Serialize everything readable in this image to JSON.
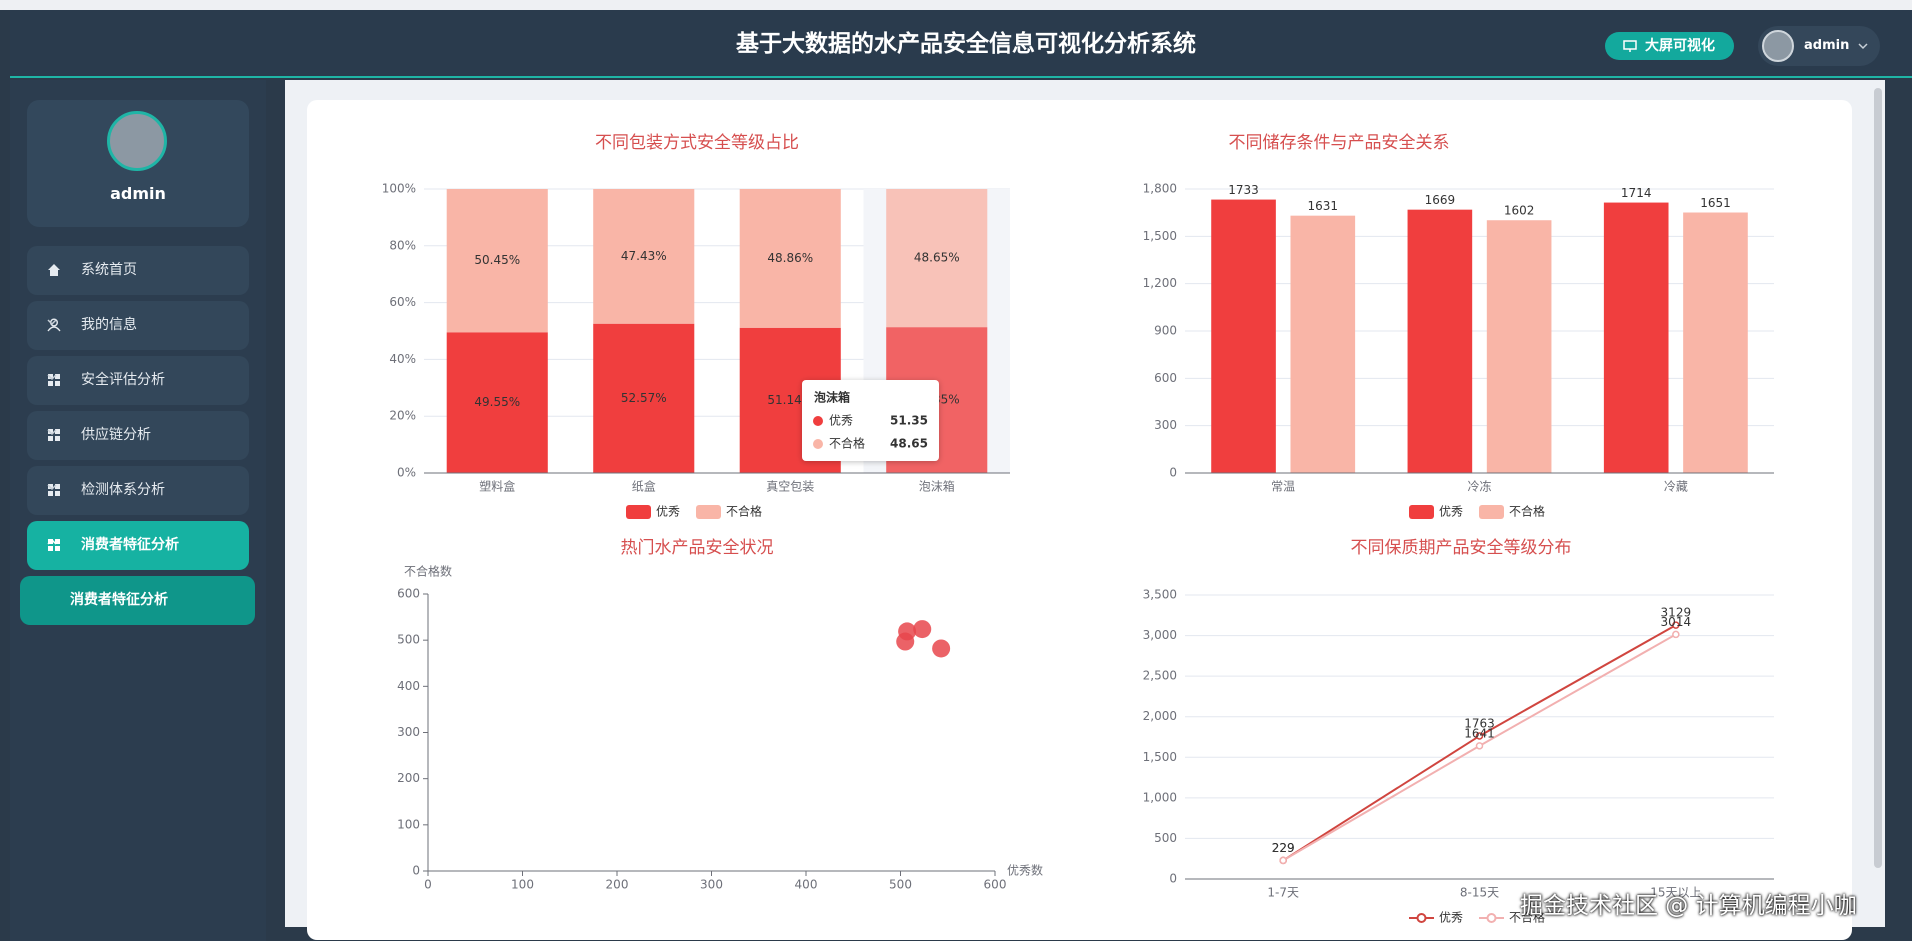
{
  "header": {
    "title": "基于大数据的水产品安全信息可视化分析系统",
    "button": "大屏可视化",
    "user": "admin"
  },
  "sidebar": {
    "user": "admin",
    "menu": [
      "系统首页",
      "我的信息",
      "安全评估分析",
      "供应链分析",
      "检测体系分析",
      "消费者特征分析"
    ],
    "submenu": [
      "消费者特征分析"
    ]
  },
  "chart_data": [
    {
      "type": "stacked_bar",
      "title": "不同包装方式安全等级占比",
      "categories": [
        "塑料盒",
        "纸盒",
        "真空包装",
        "泡沫箱"
      ],
      "series": [
        {
          "name": "优秀",
          "color": "#f03e3e",
          "values": [
            49.55,
            52.57,
            51.14,
            51.35
          ],
          "value_labels": [
            "49.55%",
            "52.57%",
            "51.14%",
            "51.35%"
          ]
        },
        {
          "name": "不合格",
          "color": "#f9b5a7",
          "values": [
            50.45,
            47.43,
            48.86,
            48.65
          ],
          "value_labels": [
            "50.45%",
            "47.43%",
            "48.86%",
            "48.65%"
          ]
        }
      ],
      "ylim": [
        0,
        100
      ],
      "yticks": [
        {
          "value": 0,
          "label": "0%"
        },
        {
          "value": 20,
          "label": "20%"
        },
        {
          "value": 40,
          "label": "40%"
        },
        {
          "value": 60,
          "label": "60%"
        },
        {
          "value": 80,
          "label": "80%"
        },
        {
          "value": 100,
          "label": "100%"
        }
      ],
      "grid": true,
      "legend": "bottom"
    },
    {
      "type": "bar",
      "title": "不同储存条件与产品安全关系",
      "categories": [
        "常温",
        "冷冻",
        "冷藏"
      ],
      "series": [
        {
          "name": "优秀",
          "color": "#f03e3e",
          "values": [
            1733,
            1669,
            1714
          ]
        },
        {
          "name": "不合格",
          "color": "#f9b5a7",
          "values": [
            1631,
            1602,
            1651
          ]
        }
      ],
      "ylim": [
        0,
        1800
      ],
      "yticks": [
        0,
        300,
        600,
        900,
        {
          "value": 1200,
          "label": "1,200"
        },
        {
          "value": 1500,
          "label": "1,500"
        },
        {
          "value": 1800,
          "label": "1,800"
        }
      ],
      "grid": true,
      "legend": "bottom"
    },
    {
      "type": "scatter",
      "title": "热门水产品安全状况",
      "xlabel": "优秀数",
      "ylabel": "不合格数",
      "x": [
        505,
        507,
        523,
        543
      ],
      "values": [
        497,
        519,
        524,
        482
      ],
      "color": "#e8464c",
      "xlim": [
        0,
        600
      ],
      "xticks": [
        0,
        100,
        200,
        300,
        400,
        500,
        600
      ],
      "ylim": [
        0,
        600
      ],
      "yticks": [
        0,
        100,
        200,
        300,
        400,
        500,
        600
      ],
      "grid": false
    },
    {
      "type": "line",
      "title": "不同保质期产品安全等级分布",
      "categories": [
        "1-7天",
        "8-15天",
        "15天以上"
      ],
      "series": [
        {
          "name": "优秀",
          "color": "#d0453f",
          "values": [
            229,
            1763,
            3129
          ]
        },
        {
          "name": "不合格",
          "color": "#f2b0b0",
          "values": [
            229,
            1641,
            3014
          ]
        }
      ],
      "ylim": [
        0,
        3500
      ],
      "yticks": [
        0,
        500,
        {
          "value": 1000,
          "label": "1,000"
        },
        {
          "value": 1500,
          "label": "1,500"
        },
        {
          "value": 2000,
          "label": "2,000"
        },
        {
          "value": 2500,
          "label": "2,500"
        },
        {
          "value": 3000,
          "label": "3,000"
        },
        {
          "value": 3500,
          "label": "3,500"
        }
      ],
      "grid": true,
      "legend": "bottom"
    }
  ],
  "watermark": "掘金技术社区 @ 计算机编程小咖"
}
